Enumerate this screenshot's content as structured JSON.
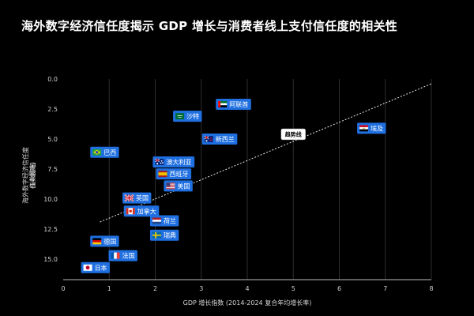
{
  "chart_data": {
    "type": "scatter",
    "title": "海外数字经济信任度揭示 GDP 增长与消费者线上支付信任度的相关性",
    "xlabel": "GDP 增长指数 (2014-2024 复合年均增长率)",
    "ylabel": "海外数字经济信任度 指数排名 (1=最高)",
    "xlim": [
      0,
      8
    ],
    "ylim": [
      0,
      16.7
    ],
    "y_inverted": true,
    "x_ticks": [
      0,
      1,
      2,
      3,
      4,
      5,
      6,
      7,
      8
    ],
    "y_ticks": [
      0.0,
      2.5,
      5.0,
      7.5,
      10.0,
      12.5,
      15.0
    ],
    "grid": "vertical",
    "points": [
      {
        "label": "巴西",
        "x": 0.9,
        "y": 6.1,
        "flag": "BR"
      },
      {
        "label": "英国",
        "x": 1.6,
        "y": 9.9,
        "flag": "GB"
      },
      {
        "label": "加拿大",
        "x": 1.7,
        "y": 11.0,
        "flag": "CA"
      },
      {
        "label": "德国",
        "x": 0.9,
        "y": 13.5,
        "flag": "DE"
      },
      {
        "label": "法国",
        "x": 1.3,
        "y": 14.7,
        "flag": "FR"
      },
      {
        "label": "日本",
        "x": 0.7,
        "y": 15.7,
        "flag": "JP"
      },
      {
        "label": "荷兰",
        "x": 2.2,
        "y": 11.8,
        "flag": "NL"
      },
      {
        "label": "瑞典",
        "x": 2.2,
        "y": 13.0,
        "flag": "SE"
      },
      {
        "label": "澳大利亚",
        "x": 2.4,
        "y": 6.9,
        "flag": "AU"
      },
      {
        "label": "西班牙",
        "x": 2.4,
        "y": 7.9,
        "flag": "ES"
      },
      {
        "label": "美国",
        "x": 2.5,
        "y": 8.9,
        "flag": "US"
      },
      {
        "label": "沙特",
        "x": 2.7,
        "y": 3.1,
        "flag": "SA"
      },
      {
        "label": "新西兰",
        "x": 3.4,
        "y": 5.0,
        "flag": "NZ"
      },
      {
        "label": "阿联酋",
        "x": 3.7,
        "y": 2.1,
        "flag": "AE"
      },
      {
        "label": "埃及",
        "x": 6.7,
        "y": 4.1,
        "flag": "EG"
      }
    ],
    "trendline": {
      "label": "趋势线",
      "x": [
        0.8,
        8.0
      ],
      "y": [
        11.9,
        0.4
      ],
      "label_at": [
        5.0,
        4.6
      ]
    }
  },
  "colors": {
    "background": "#000000",
    "label_box": "#1f6fe0",
    "trendline": "#e8e8e8",
    "gridline": "#2e2e2e"
  }
}
